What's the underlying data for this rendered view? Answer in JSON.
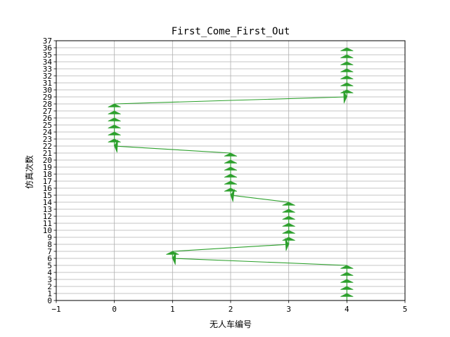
{
  "chart_data": {
    "type": "line",
    "title": "First_Come_First_Out",
    "xlabel": "无人车编号",
    "ylabel": "仿真次数",
    "xlim": [
      -1,
      5
    ],
    "ylim": [
      0,
      37
    ],
    "xticks": [
      -1,
      0,
      1,
      2,
      3,
      4,
      5
    ],
    "yticks": [
      0,
      1,
      2,
      3,
      4,
      5,
      6,
      7,
      8,
      9,
      10,
      11,
      12,
      13,
      14,
      15,
      16,
      17,
      18,
      19,
      20,
      21,
      22,
      23,
      24,
      25,
      26,
      27,
      28,
      29,
      30,
      31,
      32,
      33,
      34,
      35,
      36,
      37
    ],
    "grid": true,
    "series_color": "#2ca02c",
    "arrows": [
      {
        "x": 4,
        "y": 0,
        "dx": 0,
        "dy": 1
      },
      {
        "x": 4,
        "y": 1,
        "dx": 0,
        "dy": 1
      },
      {
        "x": 4,
        "y": 2,
        "dx": 0,
        "dy": 1
      },
      {
        "x": 4,
        "y": 3,
        "dx": 0,
        "dy": 1
      },
      {
        "x": 4,
        "y": 4,
        "dx": 0,
        "dy": 1
      },
      {
        "x": 4,
        "y": 5,
        "dx": -3,
        "dy": 1
      },
      {
        "x": 1,
        "y": 6,
        "dx": 0,
        "dy": 1
      },
      {
        "x": 1,
        "y": 7,
        "dx": 2,
        "dy": 1
      },
      {
        "x": 3,
        "y": 8,
        "dx": 0,
        "dy": 1
      },
      {
        "x": 3,
        "y": 9,
        "dx": 0,
        "dy": 1
      },
      {
        "x": 3,
        "y": 10,
        "dx": 0,
        "dy": 1
      },
      {
        "x": 3,
        "y": 11,
        "dx": 0,
        "dy": 1
      },
      {
        "x": 3,
        "y": 12,
        "dx": 0,
        "dy": 1
      },
      {
        "x": 3,
        "y": 13,
        "dx": 0,
        "dy": 1
      },
      {
        "x": 3,
        "y": 14,
        "dx": -1,
        "dy": 1
      },
      {
        "x": 2,
        "y": 15,
        "dx": 0,
        "dy": 1
      },
      {
        "x": 2,
        "y": 16,
        "dx": 0,
        "dy": 1
      },
      {
        "x": 2,
        "y": 17,
        "dx": 0,
        "dy": 1
      },
      {
        "x": 2,
        "y": 18,
        "dx": 0,
        "dy": 1
      },
      {
        "x": 2,
        "y": 19,
        "dx": 0,
        "dy": 1
      },
      {
        "x": 2,
        "y": 20,
        "dx": 0,
        "dy": 1
      },
      {
        "x": 2,
        "y": 21,
        "dx": -2,
        "dy": 1
      },
      {
        "x": 0,
        "y": 22,
        "dx": 0,
        "dy": 1
      },
      {
        "x": 0,
        "y": 23,
        "dx": 0,
        "dy": 1
      },
      {
        "x": 0,
        "y": 24,
        "dx": 0,
        "dy": 1
      },
      {
        "x": 0,
        "y": 25,
        "dx": 0,
        "dy": 1
      },
      {
        "x": 0,
        "y": 26,
        "dx": 0,
        "dy": 1
      },
      {
        "x": 0,
        "y": 27,
        "dx": 0,
        "dy": 1
      },
      {
        "x": 0,
        "y": 28,
        "dx": 4,
        "dy": 1
      },
      {
        "x": 4,
        "y": 29,
        "dx": 0,
        "dy": 1
      },
      {
        "x": 4,
        "y": 30,
        "dx": 0,
        "dy": 1
      },
      {
        "x": 4,
        "y": 31,
        "dx": 0,
        "dy": 1
      },
      {
        "x": 4,
        "y": 32,
        "dx": 0,
        "dy": 1
      },
      {
        "x": 4,
        "y": 33,
        "dx": 0,
        "dy": 1
      },
      {
        "x": 4,
        "y": 34,
        "dx": 0,
        "dy": 1
      },
      {
        "x": 4,
        "y": 35,
        "dx": 0,
        "dy": 1
      }
    ]
  }
}
